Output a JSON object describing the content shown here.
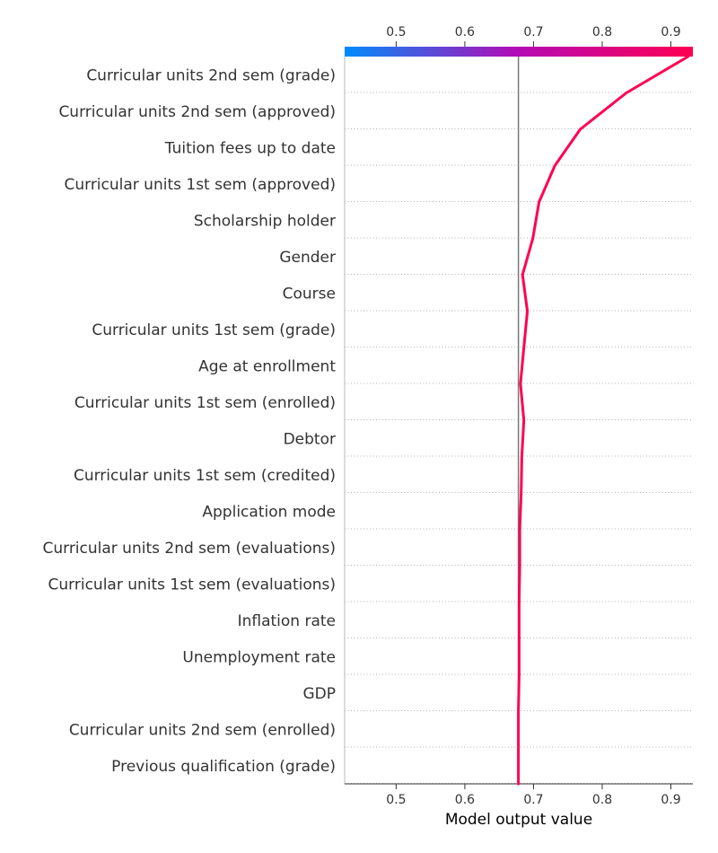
{
  "chart_data": {
    "type": "line",
    "subtype": "shap-decision-plot",
    "title": "",
    "xlabel": "Model output value",
    "ylabel": "",
    "xlim": [
      0.425,
      0.932
    ],
    "xticks": [
      0.5,
      0.6,
      0.7,
      0.8,
      0.9
    ],
    "xtick_labels": [
      "0.5",
      "0.6",
      "0.7",
      "0.8",
      "0.9"
    ],
    "base_value": 0.678,
    "grid": "dotted horizontal lines between features",
    "colorbar": {
      "position": "top",
      "low_color": "#008bfb",
      "mid_color": "#b40ab4",
      "high_color": "#ff0052"
    },
    "line_color": "#ff0052",
    "features": [
      "Curricular units 2nd sem (grade)",
      "Curricular units 2nd sem (approved)",
      "Tuition fees up to date",
      "Curricular units 1st sem (approved)",
      "Scholarship holder",
      "Gender",
      "Course",
      "Curricular units 1st sem (grade)",
      "Age at enrollment",
      "Curricular units 1st sem (enrolled)",
      "Debtor",
      "Curricular units 1st sem (credited)",
      "Application mode",
      "Curricular units 2nd sem (evaluations)",
      "Curricular units 1st sem (evaluations)",
      "Inflation rate",
      "Unemployment rate",
      "GDP",
      "Curricular units 2nd sem (enrolled)",
      "Previous qualification (grade)"
    ],
    "path_values": [
      0.925,
      0.835,
      0.768,
      0.731,
      0.708,
      0.699,
      0.684,
      0.691,
      0.686,
      0.681,
      0.686,
      0.683,
      0.682,
      0.68,
      0.68,
      0.679,
      0.679,
      0.679,
      0.678,
      0.678,
      0.678
    ]
  }
}
